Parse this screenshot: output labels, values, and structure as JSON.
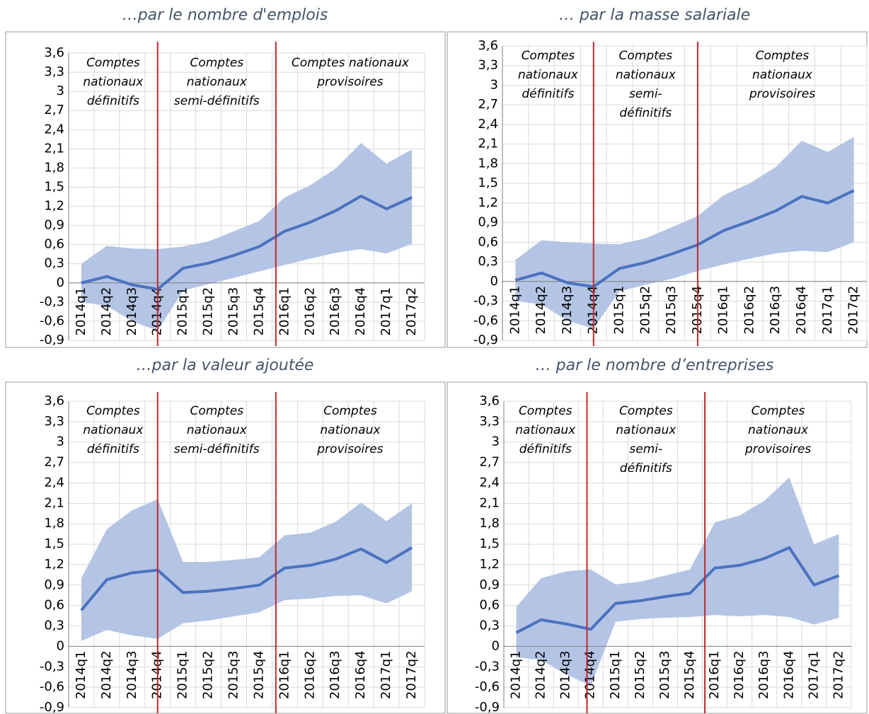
{
  "chart_data": [
    {
      "type": "line",
      "title": "…par le nombre d'emplois",
      "categories": [
        "2014q1",
        "2014q2",
        "2014q3",
        "2014q4",
        "2015q1",
        "2015q2",
        "2015q3",
        "2015q4",
        "2016q1",
        "2016q2",
        "2016q3",
        "2016q4",
        "2017q1",
        "2017q2"
      ],
      "values": [
        0,
        0.1,
        -0.03,
        -0.1,
        0.23,
        0.31,
        0.43,
        0.57,
        0.81,
        0.95,
        1.13,
        1.36,
        1.16,
        1.34
      ],
      "upper": [
        0.3,
        0.58,
        0.54,
        0.53,
        0.57,
        0.65,
        0.81,
        0.97,
        1.34,
        1.53,
        1.79,
        2.19,
        1.87,
        2.09
      ],
      "lower": [
        -0.3,
        -0.36,
        -0.6,
        -0.75,
        -0.12,
        -0.02,
        0.08,
        0.18,
        0.28,
        0.38,
        0.47,
        0.53,
        0.46,
        0.61
      ],
      "color": "#4a72c0",
      "band_color": "#b4c4e4",
      "divider_color": "#c0282d",
      "dividers": [
        3,
        7.65
      ],
      "annotations": [
        [
          "Comptes",
          "nationaux",
          "définitifs"
        ],
        [
          "Comptes",
          "nationaux",
          "semi-définitifs"
        ],
        [
          "Comptes nationaux",
          "provisoires"
        ]
      ],
      "ylim": [
        -0.9,
        3.6
      ],
      "grid": true,
      "yticks": [
        {
          "value": -0.9,
          "label": "-0,9"
        },
        {
          "value": -0.6,
          "label": "-0,6"
        },
        {
          "value": -0.3,
          "label": "-0,3"
        },
        0,
        {
          "value": 0.3,
          "label": "0,3"
        },
        {
          "value": 0.6,
          "label": "0,6"
        },
        {
          "value": 0.9,
          "label": "0,9"
        },
        {
          "value": 1.2,
          "label": "1,2"
        },
        {
          "value": 1.5,
          "label": "1,5"
        },
        {
          "value": 1.8,
          "label": "1,8"
        },
        {
          "value": 2.1,
          "label": "2,1"
        },
        {
          "value": 2.4,
          "label": "2,4"
        },
        {
          "value": 2.7,
          "label": "2,7"
        },
        3,
        {
          "value": 3.3,
          "label": "3,3"
        },
        {
          "value": 3.6,
          "label": "3,6"
        }
      ]
    },
    {
      "type": "line",
      "title": "… par la masse salariale",
      "categories": [
        "2014q1",
        "2014q2",
        "2014q3",
        "2014q4",
        "2015q1",
        "2015q2",
        "2015q3",
        "2015q4",
        "2016q1",
        "2016q2",
        "2016q3",
        "2016q4",
        "2017q1",
        "2017q2"
      ],
      "values": [
        0.02,
        0.13,
        -0.02,
        -0.08,
        0.2,
        0.29,
        0.42,
        0.56,
        0.78,
        0.92,
        1.08,
        1.3,
        1.2,
        1.39
      ],
      "upper": [
        0.33,
        0.63,
        0.6,
        0.58,
        0.57,
        0.66,
        0.83,
        1.0,
        1.32,
        1.5,
        1.75,
        2.15,
        1.98,
        2.21
      ],
      "lower": [
        -0.3,
        -0.35,
        -0.6,
        -0.72,
        -0.15,
        -0.05,
        0.04,
        0.16,
        0.26,
        0.35,
        0.43,
        0.47,
        0.45,
        0.6
      ],
      "color": "#4a72c0",
      "band_color": "#b4c4e4",
      "divider_color": "#c0282d",
      "dividers": [
        3,
        7
      ],
      "annotations": [
        [
          "Comptes",
          "nationaux",
          "définitifs"
        ],
        [
          "Comptes",
          "nationaux",
          "semi-",
          "définitifs"
        ],
        [
          "Comptes",
          "nationaux",
          "provisoires"
        ]
      ],
      "ylim": [
        -0.9,
        3.6
      ],
      "grid": true,
      "yticks": [
        {
          "value": -0.9,
          "label": "-0,9"
        },
        {
          "value": -0.6,
          "label": "-0,6"
        },
        {
          "value": -0.3,
          "label": "-0,3"
        },
        0,
        {
          "value": 0.3,
          "label": "0,3"
        },
        {
          "value": 0.6,
          "label": "0,6"
        },
        {
          "value": 0.9,
          "label": "0,9"
        },
        {
          "value": 1.2,
          "label": "1,2"
        },
        {
          "value": 1.5,
          "label": "1,5"
        },
        {
          "value": 1.8,
          "label": "1,8"
        },
        {
          "value": 2.1,
          "label": "2,1"
        },
        {
          "value": 2.4,
          "label": "2,4"
        },
        {
          "value": 2.7,
          "label": "2,7"
        },
        3,
        {
          "value": 3.3,
          "label": "3,3"
        },
        {
          "value": 3.6,
          "label": "3,6"
        }
      ]
    },
    {
      "type": "line",
      "title": "…par la valeur ajoutée",
      "categories": [
        "2014q1",
        "2014q2",
        "2014q3",
        "2014q4",
        "2015q1",
        "2015q2",
        "2015q3",
        "2015q4",
        "2016q1",
        "2016q2",
        "2016q3",
        "2016q4",
        "2017q1",
        "2017q2"
      ],
      "values": [
        0.53,
        0.98,
        1.08,
        1.12,
        0.79,
        0.81,
        0.85,
        0.9,
        1.15,
        1.19,
        1.28,
        1.43,
        1.23,
        1.45
      ],
      "upper": [
        1.0,
        1.72,
        2.0,
        2.16,
        1.24,
        1.24,
        1.27,
        1.31,
        1.63,
        1.67,
        1.83,
        2.11,
        1.84,
        2.1
      ],
      "lower": [
        0.08,
        0.24,
        0.16,
        0.11,
        0.34,
        0.38,
        0.44,
        0.5,
        0.68,
        0.7,
        0.74,
        0.75,
        0.63,
        0.81
      ],
      "color": "#4a72c0",
      "band_color": "#b4c4e4",
      "divider_color": "#c0282d",
      "dividers": [
        3,
        7.65
      ],
      "annotations": [
        [
          "Comptes",
          "nationaux",
          "définitifs"
        ],
        [
          "Comptes",
          "nationaux",
          "semi-définitifs"
        ],
        [
          "Comptes",
          "nationaux",
          "provisoires"
        ]
      ],
      "ylim": [
        -0.9,
        3.6
      ],
      "grid": true,
      "yticks": [
        {
          "value": -0.9,
          "label": "-0,9"
        },
        {
          "value": -0.6,
          "label": "-0,6"
        },
        {
          "value": -0.3,
          "label": "-0,3"
        },
        0,
        {
          "value": 0.3,
          "label": "0,3"
        },
        {
          "value": 0.6,
          "label": "0,6"
        },
        {
          "value": 0.9,
          "label": "0,9"
        },
        {
          "value": 1.2,
          "label": "1,2"
        },
        {
          "value": 1.5,
          "label": "1,5"
        },
        {
          "value": 1.8,
          "label": "1,8"
        },
        {
          "value": 2.1,
          "label": "2,1"
        },
        {
          "value": 2.4,
          "label": "2,4"
        },
        {
          "value": 2.7,
          "label": "2,7"
        },
        3,
        {
          "value": 3.3,
          "label": "3,3"
        },
        {
          "value": 3.6,
          "label": "3,6"
        }
      ]
    },
    {
      "type": "line",
      "title": "… par le nombre d’entreprises",
      "categories": [
        "2014q1",
        "2014q2",
        "2014q3",
        "2014q4",
        "2015q1",
        "2015q2",
        "2015q3",
        "2015q4",
        "2016q1",
        "2016q2",
        "2016q3",
        "2016q4",
        "2017q1",
        "2017q2"
      ],
      "values": [
        0.2,
        0.39,
        0.33,
        0.25,
        0.63,
        0.67,
        0.73,
        0.78,
        1.15,
        1.19,
        1.29,
        1.45,
        0.9,
        1.04
      ],
      "upper": [
        0.58,
        1.0,
        1.1,
        1.13,
        0.91,
        0.95,
        1.04,
        1.13,
        1.82,
        1.92,
        2.14,
        2.48,
        1.5,
        1.65
      ],
      "lower": [
        -0.16,
        -0.2,
        -0.41,
        -0.58,
        0.36,
        0.4,
        0.42,
        0.43,
        0.46,
        0.44,
        0.46,
        0.43,
        0.32,
        0.42
      ],
      "color": "#4a72c0",
      "band_color": "#b4c4e4",
      "divider_color": "#c0282d",
      "dividers": [
        2.85,
        7.6
      ],
      "annotations": [
        [
          "Comptes",
          "nationaux",
          "définitifs"
        ],
        [
          "Comptes",
          "nationaux",
          "semi-",
          "définitifs"
        ],
        [
          "Comptes",
          "nationaux",
          "provisoires"
        ]
      ],
      "ylim": [
        -0.9,
        3.6
      ],
      "grid": true,
      "yticks": [
        {
          "value": -0.9,
          "label": "-0,9"
        },
        {
          "value": -0.6,
          "label": "-0,6"
        },
        {
          "value": -0.3,
          "label": "-0,3"
        },
        0,
        {
          "value": 0.3,
          "label": "0,3"
        },
        {
          "value": 0.6,
          "label": "0,6"
        },
        {
          "value": 0.9,
          "label": "0,9"
        },
        {
          "value": 1.2,
          "label": "1,2"
        },
        {
          "value": 1.5,
          "label": "1,5"
        },
        {
          "value": 1.8,
          "label": "1,8"
        },
        {
          "value": 2.1,
          "label": "2,1"
        },
        {
          "value": 2.4,
          "label": "2,4"
        },
        {
          "value": 2.7,
          "label": "2,7"
        },
        3,
        {
          "value": 3.3,
          "label": "3,3"
        },
        {
          "value": 3.6,
          "label": "3,6"
        }
      ]
    }
  ]
}
